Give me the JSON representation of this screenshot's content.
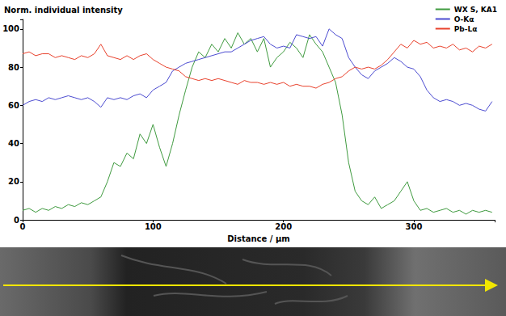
{
  "chart_data": {
    "type": "line",
    "ylabel": "Norm. individual intensity",
    "xlabel": "Distance / µm",
    "x": [
      0,
      5,
      10,
      15,
      20,
      25,
      30,
      35,
      40,
      45,
      50,
      55,
      60,
      65,
      70,
      75,
      80,
      85,
      90,
      95,
      100,
      105,
      110,
      115,
      120,
      125,
      130,
      135,
      140,
      145,
      150,
      155,
      160,
      165,
      170,
      175,
      180,
      185,
      190,
      195,
      200,
      205,
      210,
      215,
      220,
      225,
      230,
      235,
      240,
      245,
      250,
      255,
      260,
      265,
      270,
      275,
      280,
      285,
      290,
      295,
      300,
      305,
      310,
      315,
      320,
      325,
      330,
      335,
      340,
      345,
      350,
      355,
      360
    ],
    "series": [
      {
        "name": "WX S, KA1",
        "color": "#3f9a3f",
        "values": [
          5,
          6,
          4,
          6,
          5,
          7,
          6,
          8,
          7,
          9,
          8,
          10,
          12,
          20,
          30,
          28,
          35,
          32,
          45,
          40,
          50,
          38,
          28,
          40,
          55,
          68,
          80,
          88,
          85,
          92,
          88,
          95,
          90,
          98,
          92,
          95,
          88,
          95,
          80,
          85,
          88,
          93,
          90,
          85,
          97,
          92,
          88,
          80,
          72,
          55,
          30,
          15,
          10,
          8,
          12,
          6,
          8,
          10,
          15,
          20,
          10,
          5,
          6,
          4,
          5,
          6,
          4,
          5,
          3,
          5,
          4,
          5,
          4
        ]
      },
      {
        "name": "O-Kα",
        "color": "#4b4bd0",
        "values": [
          60,
          62,
          63,
          62,
          64,
          63,
          64,
          65,
          64,
          63,
          64,
          62,
          59,
          64,
          63,
          64,
          63,
          65,
          66,
          64,
          68,
          70,
          72,
          78,
          80,
          82,
          83,
          84,
          85,
          86,
          87,
          88,
          88,
          90,
          92,
          94,
          95,
          96,
          92,
          90,
          91,
          90,
          97,
          96,
          95,
          96,
          91,
          100,
          97,
          95,
          85,
          80,
          76,
          74,
          78,
          80,
          82,
          85,
          83,
          80,
          79,
          75,
          68,
          64,
          62,
          63,
          62,
          60,
          61,
          60,
          58,
          57,
          62
        ]
      },
      {
        "name": "Pb-Lα",
        "color": "#e8412c",
        "values": [
          87,
          88,
          86,
          87,
          87,
          85,
          86,
          85,
          84,
          86,
          85,
          87,
          92,
          86,
          85,
          84,
          86,
          84,
          86,
          87,
          84,
          82,
          80,
          79,
          78,
          75,
          74,
          73,
          74,
          73,
          74,
          73,
          72,
          71,
          73,
          72,
          72,
          71,
          72,
          71,
          72,
          70,
          71,
          70,
          70,
          69,
          71,
          72,
          74,
          75,
          78,
          80,
          79,
          80,
          79,
          81,
          84,
          88,
          92,
          90,
          94,
          92,
          93,
          90,
          91,
          90,
          92,
          89,
          90,
          88,
          91,
          90,
          92
        ]
      }
    ],
    "xlim": [
      0,
      362
    ],
    "xticks": [
      0,
      100,
      200,
      300
    ],
    "ylim": [
      0,
      105
    ],
    "yticks": [
      0,
      20,
      40,
      60,
      80,
      100
    ],
    "grid": false,
    "legend": "upper right",
    "marker": "none",
    "line_style": "solid"
  }
}
